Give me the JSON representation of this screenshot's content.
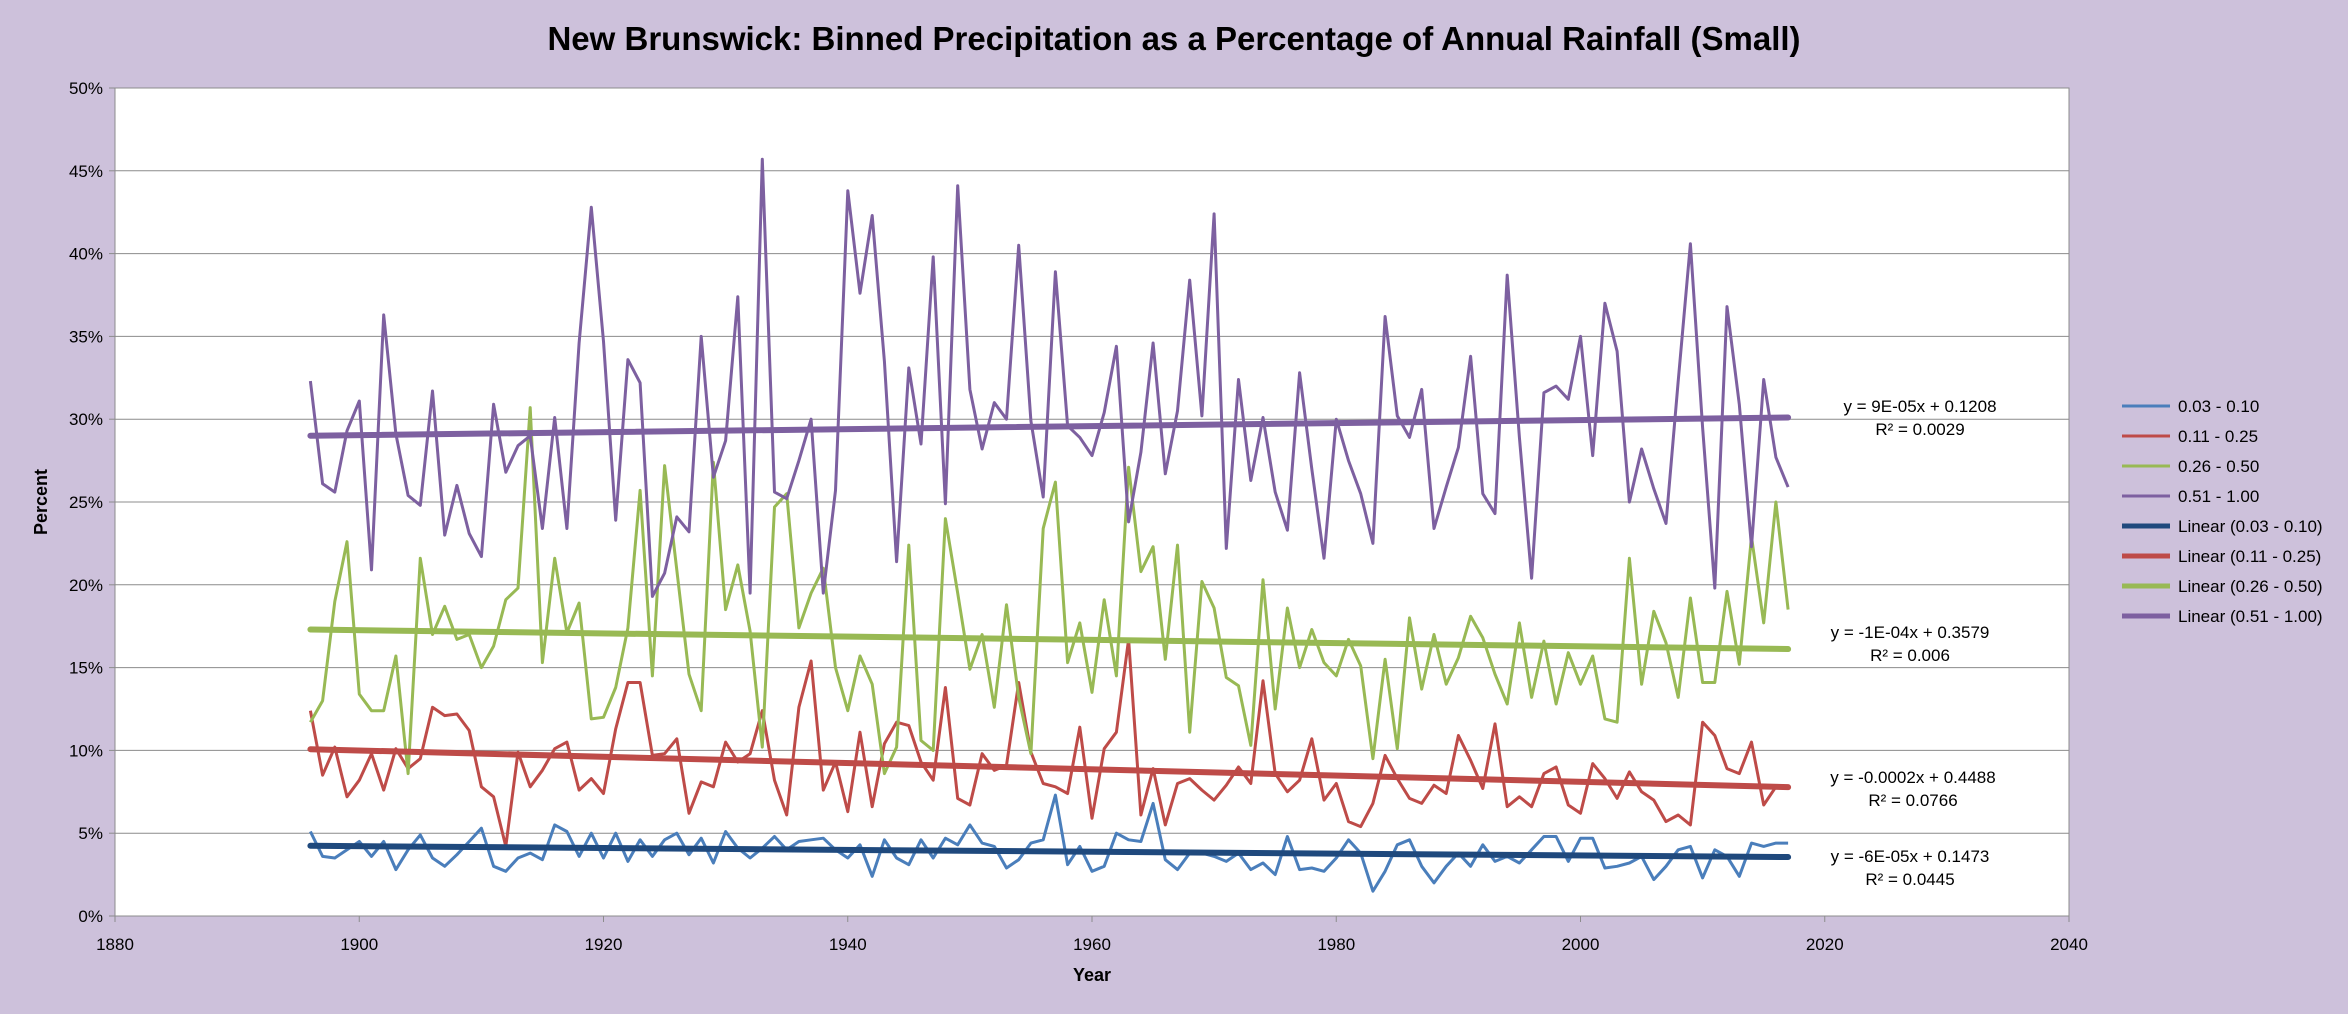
{
  "chart_data": {
    "type": "line",
    "title": "New Brunswick: Binned Precipitation as a Percentage of Annual Rainfall (Small)",
    "xlabel": "Year",
    "ylabel": "Percent",
    "xlim": [
      1880,
      2040
    ],
    "ylim": [
      0,
      0.5
    ],
    "x_ticks": [
      "1880",
      "1900",
      "1920",
      "1940",
      "1960",
      "1980",
      "2000",
      "2020",
      "2040"
    ],
    "y_ticks": [
      "0%",
      "5%",
      "10%",
      "15%",
      "20%",
      "25%",
      "30%",
      "35%",
      "40%",
      "45%",
      "50%"
    ],
    "grid": "horizontal",
    "legend_position": "right",
    "colors": {
      "background": "#cdc1db",
      "plot_area": "#ffffff",
      "s1": "#4a7ebb",
      "s2": "#be4b48",
      "s3": "#98b954",
      "s4": "#7d60a0",
      "t1": "#1f497d",
      "t2": "#be4b48",
      "t3": "#98b954",
      "t4": "#7d60a0"
    },
    "x_start": 1896,
    "x_end": 2017,
    "series": [
      {
        "name": "0.03 - 0.10",
        "values": [
          0.051,
          0.036,
          0.035,
          0.04,
          0.045,
          0.036,
          0.045,
          0.028,
          0.04,
          0.049,
          0.035,
          0.03,
          0.037,
          0.045,
          0.053,
          0.03,
          0.027,
          0.035,
          0.038,
          0.034,
          0.055,
          0.051,
          0.036,
          0.05,
          0.035,
          0.05,
          0.033,
          0.046,
          0.036,
          0.046,
          0.05,
          0.037,
          0.047,
          0.032,
          0.051,
          0.041,
          0.035,
          0.041,
          0.048,
          0.04,
          0.045,
          0.046,
          0.047,
          0.04,
          0.035,
          0.043,
          0.024,
          0.046,
          0.035,
          0.031,
          0.046,
          0.035,
          0.047,
          0.043,
          0.055,
          0.044,
          0.042,
          0.029,
          0.034,
          0.044,
          0.046,
          0.073,
          0.031,
          0.042,
          0.027,
          0.03,
          0.05,
          0.046,
          0.045,
          0.068,
          0.034,
          0.028,
          0.038,
          0.038,
          0.036,
          0.033,
          0.038,
          0.028,
          0.032,
          0.025,
          0.048,
          0.028,
          0.029,
          0.027,
          0.035,
          0.046,
          0.038,
          0.015,
          0.027,
          0.043,
          0.046,
          0.03,
          0.02,
          0.03,
          0.038,
          0.03,
          0.043,
          0.033,
          0.036,
          0.032,
          0.04,
          0.048,
          0.048,
          0.033,
          0.047,
          0.047,
          0.029,
          0.03,
          0.032,
          0.036,
          0.022,
          0.03,
          0.04,
          0.042,
          0.023,
          0.04,
          0.036,
          0.024,
          0.044,
          0.042,
          0.044,
          0.044
        ]
      },
      {
        "name": "0.11 - 0.25",
        "values": [
          0.124,
          0.085,
          0.102,
          0.072,
          0.082,
          0.098,
          0.076,
          0.101,
          0.089,
          0.095,
          0.126,
          0.121,
          0.122,
          0.112,
          0.078,
          0.072,
          0.042,
          0.099,
          0.078,
          0.088,
          0.101,
          0.105,
          0.076,
          0.083,
          0.074,
          0.113,
          0.141,
          0.141,
          0.097,
          0.098,
          0.107,
          0.062,
          0.081,
          0.078,
          0.105,
          0.093,
          0.098,
          0.124,
          0.082,
          0.061,
          0.126,
          0.154,
          0.076,
          0.093,
          0.063,
          0.111,
          0.066,
          0.104,
          0.117,
          0.115,
          0.093,
          0.082,
          0.138,
          0.071,
          0.067,
          0.098,
          0.088,
          0.091,
          0.141,
          0.099,
          0.08,
          0.078,
          0.074,
          0.114,
          0.059,
          0.101,
          0.111,
          0.167,
          0.061,
          0.089,
          0.055,
          0.08,
          0.083,
          0.076,
          0.07,
          0.079,
          0.09,
          0.08,
          0.142,
          0.086,
          0.075,
          0.082,
          0.107,
          0.07,
          0.08,
          0.057,
          0.054,
          0.068,
          0.097,
          0.083,
          0.071,
          0.068,
          0.079,
          0.074,
          0.109,
          0.094,
          0.077,
          0.116,
          0.066,
          0.072,
          0.066,
          0.086,
          0.09,
          0.067,
          0.062,
          0.092,
          0.083,
          0.071,
          0.087,
          0.075,
          0.07,
          0.057,
          0.061,
          0.055,
          0.117,
          0.109,
          0.089,
          0.086,
          0.105,
          0.067,
          0.078,
          0.078
        ]
      },
      {
        "name": "0.26 - 0.50",
        "values": [
          0.117,
          0.13,
          0.19,
          0.226,
          0.134,
          0.124,
          0.124,
          0.157,
          0.086,
          0.216,
          0.17,
          0.187,
          0.167,
          0.17,
          0.15,
          0.163,
          0.191,
          0.198,
          0.307,
          0.153,
          0.216,
          0.171,
          0.189,
          0.119,
          0.12,
          0.138,
          0.174,
          0.257,
          0.145,
          0.272,
          0.209,
          0.146,
          0.124,
          0.274,
          0.185,
          0.212,
          0.172,
          0.102,
          0.247,
          0.255,
          0.174,
          0.195,
          0.21,
          0.15,
          0.124,
          0.157,
          0.14,
          0.086,
          0.102,
          0.224,
          0.106,
          0.1,
          0.24,
          0.195,
          0.149,
          0.17,
          0.126,
          0.188,
          0.132,
          0.098,
          0.234,
          0.262,
          0.153,
          0.177,
          0.135,
          0.191,
          0.145,
          0.271,
          0.208,
          0.223,
          0.155,
          0.224,
          0.111,
          0.202,
          0.186,
          0.144,
          0.139,
          0.103,
          0.203,
          0.125,
          0.186,
          0.15,
          0.173,
          0.153,
          0.145,
          0.167,
          0.151,
          0.095,
          0.155,
          0.101,
          0.18,
          0.137,
          0.17,
          0.14,
          0.156,
          0.181,
          0.168,
          0.146,
          0.128,
          0.177,
          0.132,
          0.166,
          0.128,
          0.159,
          0.14,
          0.157,
          0.119,
          0.117,
          0.216,
          0.14,
          0.184,
          0.165,
          0.132,
          0.192,
          0.141,
          0.141,
          0.196,
          0.152,
          0.229,
          0.177,
          0.25,
          0.185
        ]
      },
      {
        "name": "0.51 - 1.00",
        "values": [
          0.323,
          0.261,
          0.256,
          0.293,
          0.311,
          0.209,
          0.363,
          0.291,
          0.254,
          0.248,
          0.317,
          0.23,
          0.26,
          0.231,
          0.217,
          0.309,
          0.268,
          0.284,
          0.29,
          0.234,
          0.301,
          0.234,
          0.346,
          0.428,
          0.347,
          0.239,
          0.336,
          0.322,
          0.193,
          0.207,
          0.241,
          0.232,
          0.35,
          0.265,
          0.287,
          0.374,
          0.195,
          0.457,
          0.256,
          0.252,
          0.275,
          0.3,
          0.195,
          0.257,
          0.438,
          0.376,
          0.423,
          0.335,
          0.214,
          0.331,
          0.285,
          0.398,
          0.249,
          0.441,
          0.318,
          0.282,
          0.31,
          0.3,
          0.405,
          0.299,
          0.253,
          0.389,
          0.296,
          0.289,
          0.278,
          0.304,
          0.344,
          0.238,
          0.28,
          0.346,
          0.267,
          0.305,
          0.384,
          0.302,
          0.424,
          0.222,
          0.324,
          0.263,
          0.301,
          0.256,
          0.233,
          0.328,
          0.27,
          0.216,
          0.3,
          0.275,
          0.255,
          0.225,
          0.362,
          0.302,
          0.289,
          0.318,
          0.234,
          0.259,
          0.283,
          0.338,
          0.255,
          0.243,
          0.387,
          0.289,
          0.204,
          0.316,
          0.32,
          0.312,
          0.35,
          0.278,
          0.37,
          0.341,
          0.25,
          0.282,
          0.258,
          0.237,
          0.323,
          0.406,
          0.295,
          0.198,
          0.368,
          0.309,
          0.223,
          0.324,
          0.277,
          0.259
        ]
      }
    ],
    "trendlines": [
      {
        "name": "Linear (0.03 - 0.10)",
        "slope": -6e-05,
        "intercept": 0.1473,
        "equation": "y = -6E-05x + 0.1473",
        "r2": "R² = 0.0445"
      },
      {
        "name": "Linear (0.11 - 0.25)",
        "slope": -0.0002,
        "intercept": 0.4488,
        "equation": "y = -0.0002x + 0.4488",
        "r2": "R² = 0.0766"
      },
      {
        "name": "Linear (0.26 - 0.50)",
        "slope": -0.0001,
        "intercept": 0.3579,
        "equation": "y = -1E-04x + 0.3579",
        "r2": "R² = 0.006"
      },
      {
        "name": "Linear (0.51 - 1.00)",
        "slope": 9e-05,
        "intercept": 0.1208,
        "equation": "y = 9E-05x + 0.1208",
        "r2": "R² = 0.0029"
      }
    ],
    "trend_endpoints": [
      {
        "y_start": 0.0424,
        "y_end": 0.0356
      },
      {
        "y_start": 0.1007,
        "y_end": 0.0778
      },
      {
        "y_start": 0.173,
        "y_end": 0.1612
      },
      {
        "y_start": 0.29,
        "y_end": 0.301
      }
    ]
  }
}
